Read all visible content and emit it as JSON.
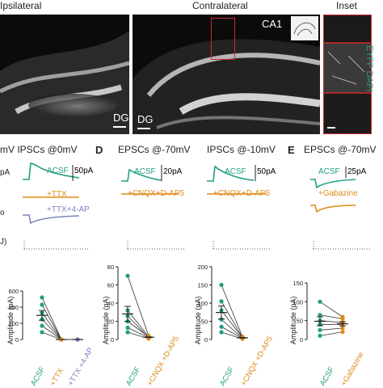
{
  "top": {
    "ipsilateral": "Ipsilateral",
    "contralateral": "Contralateral",
    "inset": "Inset",
    "ca1": "CA1",
    "dg_left": "DG",
    "dg_right": "DG",
    "inset_vertical": "EYFP DAPI"
  },
  "row2": {
    "left_header": "mV IPSCs @0mV",
    "d_letter": "D",
    "d_epsc": "EPSCs @-70mV",
    "d_ipsc": "IPSCs @-10mV",
    "e_letter": "E",
    "e_epsc": "EPSCs @-70mV",
    "left_pa": "pA",
    "left_mv_note": "o",
    "left_j": "J)"
  },
  "traces": {
    "left_acsf": "ACSF",
    "left_ttx": "+TTX",
    "left_ttx4ap": "+TTX+4-AP",
    "left_scale": "50pA",
    "d1_acsf": "ACSF",
    "d1_drug": "+CNQX+D-AP5",
    "d1_scale": "20pA",
    "d2_acsf": "ACSF",
    "d2_drug": "+CNQX+D-AP5",
    "d2_scale": "50pA",
    "e_acsf": "ACSF",
    "e_drug": "+Gabazine",
    "e_scale": "25pA"
  },
  "colors": {
    "acsf": "#1f9e85",
    "drug": "#e08a1a",
    "ttx4ap": "#7a86c2",
    "inset_box": "#d0282e"
  },
  "plots": {
    "ylabel": "Amplitude (pA)",
    "left": {
      "ticks": [
        "0",
        "200",
        "400",
        "600"
      ],
      "xlabels": [
        "ACSF",
        "+TTX",
        "+TTX +4-AP"
      ]
    },
    "d1": {
      "ticks": [
        "0",
        "20",
        "40",
        "60",
        "80"
      ],
      "xlabels": [
        "ACSF",
        "+CNQX +D-AP5"
      ]
    },
    "d2": {
      "ticks": [
        "0",
        "50",
        "100",
        "150",
        "200"
      ],
      "xlabels": [
        "ACSF",
        "+CNQX +D-AP5"
      ]
    },
    "e": {
      "ticks": [
        "0",
        "50",
        "100",
        "150"
      ],
      "xlabels": [
        "ACSF",
        "+Gabazine"
      ]
    }
  },
  "chart_data": [
    {
      "type": "scatter",
      "panel": "left IPSCs @0mV",
      "ylabel": "Amplitude (pA)",
      "ylim": [
        0,
        600
      ],
      "categories": [
        "ACSF",
        "+TTX",
        "+TTX +4-AP"
      ],
      "series": [
        {
          "values": [
            520,
            0,
            0
          ]
        },
        {
          "values": [
            430,
            0,
            0
          ]
        },
        {
          "values": [
            330,
            0,
            0
          ]
        },
        {
          "values": [
            250,
            0,
            0
          ]
        },
        {
          "values": [
            170,
            0,
            0
          ]
        },
        {
          "values": [
            90,
            0,
            0
          ]
        }
      ]
    },
    {
      "type": "scatter",
      "panel": "D EPSCs @-70mV",
      "ylabel": "Amplitude (pA)",
      "ylim": [
        0,
        80
      ],
      "categories": [
        "ACSF",
        "+CNQX +D-AP5"
      ],
      "series": [
        {
          "values": [
            70,
            4
          ]
        },
        {
          "values": [
            32,
            3
          ]
        },
        {
          "values": [
            26,
            2
          ]
        },
        {
          "values": [
            20,
            3
          ]
        },
        {
          "values": [
            13,
            2
          ]
        },
        {
          "values": [
            8,
            1
          ]
        }
      ]
    },
    {
      "type": "scatter",
      "panel": "D IPSCs @-10mV",
      "ylabel": "Amplitude (pA)",
      "ylim": [
        0,
        200
      ],
      "categories": [
        "ACSF",
        "+CNQX +D-AP5"
      ],
      "series": [
        {
          "values": [
            150,
            8
          ]
        },
        {
          "values": [
            105,
            6
          ]
        },
        {
          "values": [
            80,
            5
          ]
        },
        {
          "values": [
            55,
            4
          ]
        },
        {
          "values": [
            35,
            3
          ]
        },
        {
          "values": [
            20,
            2
          ]
        }
      ]
    },
    {
      "type": "scatter",
      "panel": "E EPSCs @-70mV",
      "ylabel": "Amplitude (pA)",
      "ylim": [
        0,
        150
      ],
      "categories": [
        "ACSF",
        "+Gabazine"
      ],
      "series": [
        {
          "values": [
            100,
            60
          ]
        },
        {
          "values": [
            65,
            55
          ]
        },
        {
          "values": [
            50,
            45
          ]
        },
        {
          "values": [
            40,
            40
          ]
        },
        {
          "values": [
            25,
            30
          ]
        },
        {
          "values": [
            10,
            20
          ]
        }
      ]
    }
  ]
}
